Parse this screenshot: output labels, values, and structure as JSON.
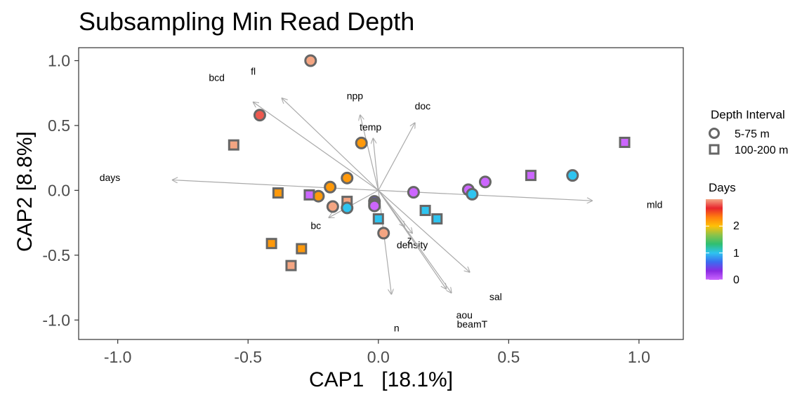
{
  "chart_data": {
    "type": "scatter",
    "title": "Subsampling Min Read Depth",
    "xlabel": "CAP1   [18.1%]",
    "ylabel": "CAP2   [8.8%]",
    "xlim": [
      -1.15,
      1.17
    ],
    "ylim": [
      -1.15,
      1.1
    ],
    "xticks": [
      -1.0,
      -0.5,
      0.0,
      0.5,
      1.0
    ],
    "xtick_labels": [
      "-1.0",
      "-0.5",
      "0.0",
      "0.5",
      "1.0"
    ],
    "yticks": [
      -1.0,
      -0.5,
      0.0,
      0.5,
      1.0
    ],
    "ytick_labels": [
      "-1.0",
      "-0.5",
      "0.0",
      "0.5",
      "1.0"
    ],
    "grid": false,
    "legend_placement": "right",
    "shape_legend": {
      "title": "Depth Interval",
      "items": [
        {
          "label": "5-75 m",
          "shape": "circle"
        },
        {
          "label": "100-200 m",
          "shape": "square"
        }
      ]
    },
    "color_legend": {
      "title": "Days",
      "ticks": [
        0,
        1,
        2
      ],
      "tick_labels": [
        "0",
        "1",
        "2"
      ],
      "colors": [
        "#cc66ff",
        "#8a2be2",
        "#3a6df0",
        "#2ec4f0",
        "#2fbf71",
        "#8bc34a",
        "#ffc107",
        "#ff7f0e",
        "#e8262d",
        "#f4a582"
      ]
    },
    "vectors": [
      {
        "label": "mld",
        "x": 0.82,
        "y": -0.08,
        "lx": 1.06,
        "ly": -0.11
      },
      {
        "label": "days",
        "x": -0.79,
        "y": 0.08,
        "lx": -1.03,
        "ly": 0.1
      },
      {
        "label": "fl",
        "x": -0.37,
        "y": 0.71,
        "lx": -0.48,
        "ly": 0.92
      },
      {
        "label": "bcd",
        "x": -0.48,
        "y": 0.68,
        "lx": -0.62,
        "ly": 0.87
      },
      {
        "label": "npp",
        "x": -0.07,
        "y": 0.58,
        "lx": -0.09,
        "ly": 0.73
      },
      {
        "label": "doc",
        "x": 0.14,
        "y": 0.52,
        "lx": 0.17,
        "ly": 0.65
      },
      {
        "label": "temp",
        "x": -0.02,
        "y": 0.4,
        "lx": -0.03,
        "ly": 0.49
      },
      {
        "label": "bc",
        "x": -0.19,
        "y": -0.21,
        "lx": -0.24,
        "ly": -0.27
      },
      {
        "label": "z",
        "x": 0.1,
        "y": -0.28,
        "lx": 0.12,
        "ly": -0.38
      },
      {
        "label": "density",
        "x": 0.13,
        "y": -0.33,
        "lx": 0.13,
        "ly": -0.42
      },
      {
        "label": "sal",
        "x": 0.35,
        "y": -0.63,
        "lx": 0.45,
        "ly": -0.82
      },
      {
        "label": "aou",
        "x": 0.28,
        "y": -0.79,
        "lx": 0.33,
        "ly": -0.96
      },
      {
        "label": "beamT",
        "x": 0.26,
        "y": -0.76,
        "lx": 0.36,
        "ly": -1.03
      },
      {
        "label": "n",
        "x": 0.05,
        "y": -0.8,
        "lx": 0.07,
        "ly": -1.06
      }
    ],
    "points": [
      {
        "x": -0.26,
        "y": 1.0,
        "shape": "circle",
        "days": 3.0
      },
      {
        "x": -0.455,
        "y": 0.58,
        "shape": "circle",
        "days": 2.8
      },
      {
        "x": -0.555,
        "y": 0.35,
        "shape": "square",
        "days": 3.0
      },
      {
        "x": -0.065,
        "y": 0.365,
        "shape": "circle",
        "days": 2.2
      },
      {
        "x": -0.12,
        "y": 0.095,
        "shape": "circle",
        "days": 2.2
      },
      {
        "x": -0.185,
        "y": 0.025,
        "shape": "circle",
        "days": 2.2
      },
      {
        "x": -0.23,
        "y": -0.045,
        "shape": "circle",
        "days": 2.2
      },
      {
        "x": -0.385,
        "y": -0.02,
        "shape": "square",
        "days": 2.2
      },
      {
        "x": -0.265,
        "y": -0.035,
        "shape": "square",
        "days": 0.0
      },
      {
        "x": -0.175,
        "y": -0.125,
        "shape": "circle",
        "days": 3.0
      },
      {
        "x": -0.12,
        "y": -0.085,
        "shape": "square",
        "days": 3.0
      },
      {
        "x": -0.12,
        "y": -0.135,
        "shape": "circle",
        "days": 1.0
      },
      {
        "x": -0.015,
        "y": -0.085,
        "shape": "circle",
        "days": 0.5
      },
      {
        "x": -0.015,
        "y": -0.105,
        "shape": "circle",
        "days": 1.0
      },
      {
        "x": -0.015,
        "y": -0.12,
        "shape": "circle",
        "days": 0.0
      },
      {
        "x": 0.0,
        "y": -0.22,
        "shape": "square",
        "days": 1.0
      },
      {
        "x": 0.02,
        "y": -0.33,
        "shape": "circle",
        "days": 3.0
      },
      {
        "x": 0.135,
        "y": -0.015,
        "shape": "circle",
        "days": 0.0
      },
      {
        "x": 0.18,
        "y": -0.155,
        "shape": "square",
        "days": 1.0
      },
      {
        "x": 0.225,
        "y": -0.22,
        "shape": "square",
        "days": 1.0
      },
      {
        "x": 0.345,
        "y": 0.005,
        "shape": "circle",
        "days": 0.0
      },
      {
        "x": 0.36,
        "y": -0.03,
        "shape": "circle",
        "days": 1.0
      },
      {
        "x": 0.41,
        "y": 0.065,
        "shape": "circle",
        "days": 0.0
      },
      {
        "x": 0.585,
        "y": 0.115,
        "shape": "square",
        "days": 0.0
      },
      {
        "x": 0.745,
        "y": 0.115,
        "shape": "circle",
        "days": 1.0
      },
      {
        "x": 0.945,
        "y": 0.37,
        "shape": "square",
        "days": 0.0
      },
      {
        "x": -0.41,
        "y": -0.41,
        "shape": "square",
        "days": 2.2
      },
      {
        "x": -0.295,
        "y": -0.45,
        "shape": "square",
        "days": 2.2
      },
      {
        "x": -0.335,
        "y": -0.58,
        "shape": "square",
        "days": 3.0
      }
    ]
  }
}
